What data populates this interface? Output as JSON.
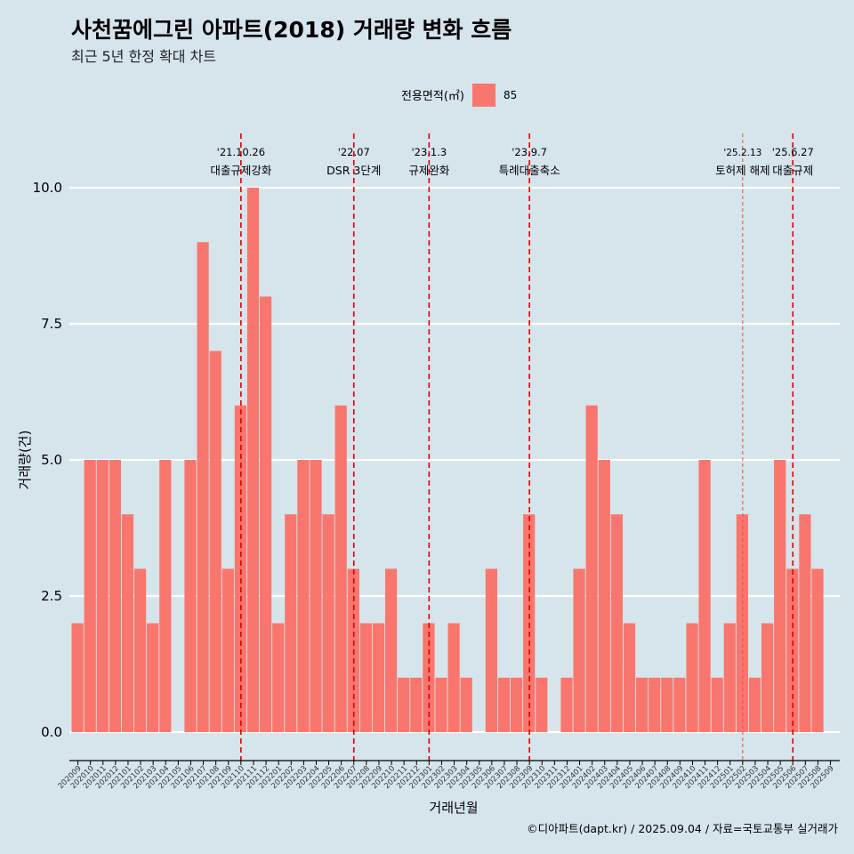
{
  "chart_data": {
    "type": "bar",
    "title": "사천꿈에그린 아파트(2018) 거래량 변화 흐름",
    "subtitle": "최근 5년 한정 확대 차트",
    "xlabel": "거래년월",
    "ylabel": "거래량(건)",
    "legend": {
      "title": "전용면적(㎡)",
      "position": "top",
      "entries": [
        {
          "label": "85",
          "color": "#f8766d"
        }
      ]
    },
    "ylim": [
      0,
      10
    ],
    "yticks": [
      "0.0",
      "2.5",
      "5.0",
      "7.5",
      "10.0"
    ],
    "grid": true,
    "bar_color": "#f8766d",
    "categories": [
      "202009",
      "202010",
      "202011",
      "202012",
      "202101",
      "202102",
      "202103",
      "202104",
      "202105",
      "202106",
      "202107",
      "202108",
      "202109",
      "202110",
      "202111",
      "202112",
      "202201",
      "202202",
      "202203",
      "202204",
      "202205",
      "202206",
      "202207",
      "202208",
      "202209",
      "202210",
      "202211",
      "202212",
      "202301",
      "202302",
      "202303",
      "202304",
      "202305",
      "202306",
      "202307",
      "202308",
      "202309",
      "202310",
      "202311",
      "202312",
      "202401",
      "202402",
      "202403",
      "202404",
      "202405",
      "202406",
      "202407",
      "202408",
      "202409",
      "202410",
      "202411",
      "202412",
      "202501",
      "202502",
      "202503",
      "202504",
      "202505",
      "202506",
      "202507",
      "202508",
      "202509"
    ],
    "values": [
      2,
      5,
      5,
      5,
      4,
      3,
      2,
      5,
      0,
      5,
      9,
      7,
      3,
      6,
      10,
      8,
      2,
      4,
      5,
      5,
      4,
      6,
      3,
      2,
      2,
      3,
      1,
      1,
      2,
      1,
      2,
      1,
      0,
      3,
      1,
      1,
      4,
      1,
      0,
      1,
      3,
      6,
      5,
      4,
      2,
      1,
      1,
      1,
      1,
      2,
      5,
      1,
      2,
      4,
      1,
      2,
      5,
      3,
      4,
      3,
      0
    ],
    "annotations": [
      {
        "at": "202110",
        "date": "'21.10.26",
        "text": "대출규제강화",
        "style": "dashed",
        "size": "normal"
      },
      {
        "at": "202207",
        "date": "'22.07",
        "text": "DSR 3단계",
        "style": "dashed",
        "size": "normal"
      },
      {
        "at": "202301",
        "date": "'23.1.3",
        "text": "규제완화",
        "style": "dashed",
        "size": "normal"
      },
      {
        "at": "202309",
        "date": "'23.9.7",
        "text": "특례대출축소",
        "style": "dashed",
        "size": "normal"
      },
      {
        "at": "202502",
        "date": "'25.2.13",
        "text": "토허제 해제",
        "style": "thin",
        "size": "small"
      },
      {
        "at": "202506",
        "date": "'25.6.27",
        "text": "대출규제",
        "style": "dashed",
        "size": "normal"
      }
    ],
    "caption": "©디아파트(dapt.kr) / 2025.09.04 / 자료=국토교통부 실거래가"
  }
}
